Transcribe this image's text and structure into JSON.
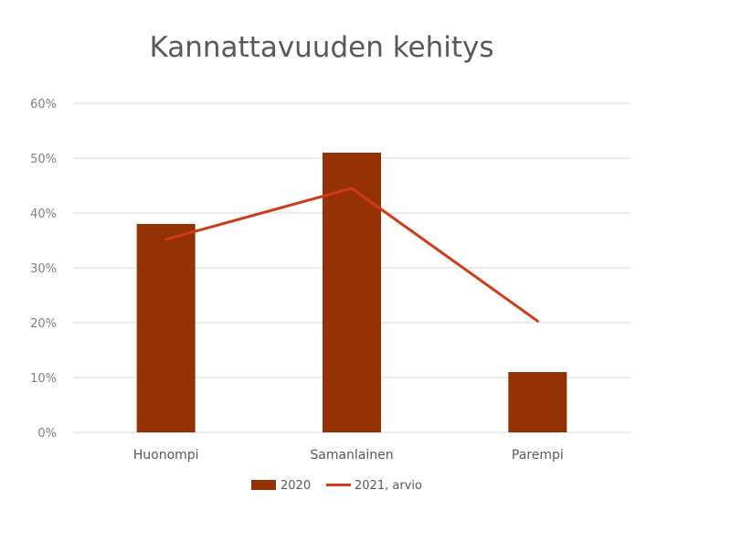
{
  "chart_data": {
    "type": "bar",
    "title": "Kannattavuuden kehitys",
    "xlabel": "",
    "ylabel": "",
    "categories": [
      "Huonompi",
      "Samanlainen",
      "Parempi"
    ],
    "series": [
      {
        "name": "2020",
        "kind": "bar",
        "values": [
          0.38,
          0.51,
          0.11
        ],
        "color": "#943105"
      },
      {
        "name": "2021, arvio",
        "kind": "line",
        "values": [
          0.352,
          0.445,
          0.203
        ],
        "color": "#cf3a17"
      }
    ],
    "ylim": [
      0,
      0.6
    ],
    "yticks": [
      {
        "value": 0,
        "label": "0%"
      },
      {
        "value": 0.1,
        "label": "10%"
      },
      {
        "value": 0.2,
        "label": "20%"
      },
      {
        "value": 0.3,
        "label": "30%"
      },
      {
        "value": 0.4,
        "label": "40%"
      },
      {
        "value": 0.5,
        "label": "50%"
      },
      {
        "value": 0.6,
        "label": "60%"
      }
    ],
    "grid": true,
    "legend": "bottom",
    "gridline_color": "#d9d9d9"
  }
}
